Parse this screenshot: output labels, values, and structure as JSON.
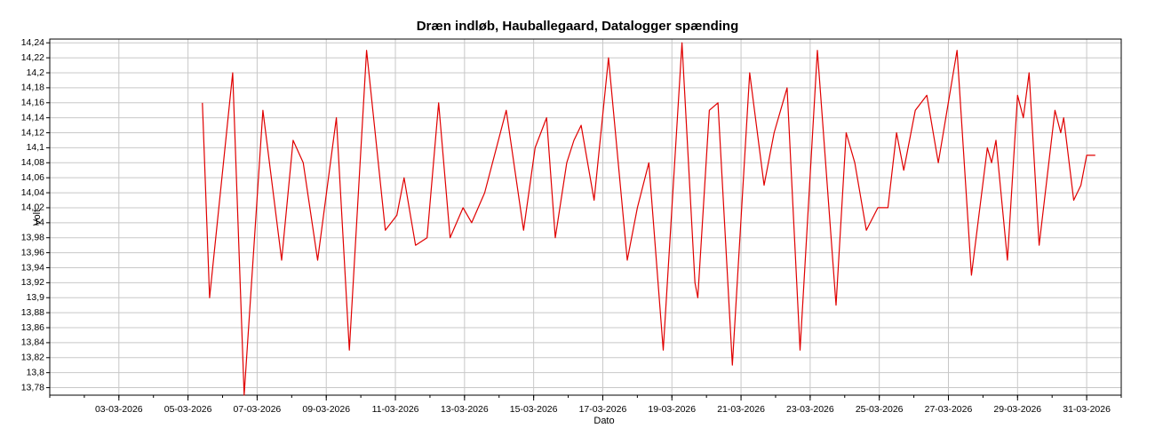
{
  "chart_data": {
    "type": "line",
    "title": "Dræn indløb, Hauballegaard, Datalogger spænding",
    "x_label": "Dato",
    "y_label": "Volt",
    "color": "#e00000",
    "grid": true,
    "xlim": [
      "2026-03-01T00:00",
      "2026-04-01T00:00"
    ],
    "xticks": [
      {
        "value": "2026-03-03T00:00",
        "label": "03-03-2026"
      },
      {
        "value": "2026-03-05T00:00",
        "label": "05-03-2026"
      },
      {
        "value": "2026-03-07T00:00",
        "label": "07-03-2026"
      },
      {
        "value": "2026-03-09T00:00",
        "label": "09-03-2026"
      },
      {
        "value": "2026-03-11T00:00",
        "label": "11-03-2026"
      },
      {
        "value": "2026-03-13T00:00",
        "label": "13-03-2026"
      },
      {
        "value": "2026-03-15T00:00",
        "label": "15-03-2026"
      },
      {
        "value": "2026-03-17T00:00",
        "label": "17-03-2026"
      },
      {
        "value": "2026-03-19T00:00",
        "label": "19-03-2026"
      },
      {
        "value": "2026-03-21T00:00",
        "label": "21-03-2026"
      },
      {
        "value": "2026-03-23T00:00",
        "label": "23-03-2026"
      },
      {
        "value": "2026-03-25T00:00",
        "label": "25-03-2026"
      },
      {
        "value": "2026-03-27T00:00",
        "label": "27-03-2026"
      },
      {
        "value": "2026-03-29T00:00",
        "label": "29-03-2026"
      },
      {
        "value": "2026-03-31T00:00",
        "label": "31-03-2026"
      }
    ],
    "ylim": [
      13.77,
      14.245
    ],
    "yticks": [
      {
        "value": 13.78,
        "label": "13,78"
      },
      {
        "value": 13.8,
        "label": "13,8"
      },
      {
        "value": 13.82,
        "label": "13,82"
      },
      {
        "value": 13.84,
        "label": "13,84"
      },
      {
        "value": 13.86,
        "label": "13,86"
      },
      {
        "value": 13.88,
        "label": "13,88"
      },
      {
        "value": 13.9,
        "label": "13,9"
      },
      {
        "value": 13.92,
        "label": "13,92"
      },
      {
        "value": 13.94,
        "label": "13,94"
      },
      {
        "value": 13.96,
        "label": "13,96"
      },
      {
        "value": 13.98,
        "label": "13,98"
      },
      14,
      {
        "value": 14.02,
        "label": "14,02"
      },
      {
        "value": 14.04,
        "label": "14,04"
      },
      {
        "value": 14.06,
        "label": "14,06"
      },
      {
        "value": 14.08,
        "label": "14,08"
      },
      {
        "value": 14.1,
        "label": "14,1"
      },
      {
        "value": 14.12,
        "label": "14,12"
      },
      {
        "value": 14.14,
        "label": "14,14"
      },
      {
        "value": 14.16,
        "label": "14,16"
      },
      {
        "value": 14.18,
        "label": "14,18"
      },
      {
        "value": 14.2,
        "label": "14,2"
      },
      {
        "value": 14.22,
        "label": "14,22"
      },
      {
        "value": 14.24,
        "label": "14,24"
      }
    ],
    "x": [
      "2026-03-05T10:00",
      "2026-03-05T15:00",
      "2026-03-06T07:00",
      "2026-03-06T15:00",
      "2026-03-07T04:00",
      "2026-03-07T17:00",
      "2026-03-08T01:00",
      "2026-03-08T08:00",
      "2026-03-08T18:00",
      "2026-03-09T07:00",
      "2026-03-09T16:00",
      "2026-03-10T04:00",
      "2026-03-10T17:00",
      "2026-03-11T01:00",
      "2026-03-11T06:00",
      "2026-03-11T14:00",
      "2026-03-11T22:00",
      "2026-03-12T06:00",
      "2026-03-12T14:00",
      "2026-03-12T23:00",
      "2026-03-13T05:00",
      "2026-03-13T14:00",
      "2026-03-14T05:00",
      "2026-03-14T17:00",
      "2026-03-15T01:00",
      "2026-03-15T09:00",
      "2026-03-15T15:00",
      "2026-03-15T23:00",
      "2026-03-16T04:00",
      "2026-03-16T09:00",
      "2026-03-16T18:00",
      "2026-03-17T04:00",
      "2026-03-17T17:00",
      "2026-03-18T00:00",
      "2026-03-18T08:00",
      "2026-03-18T18:00",
      "2026-03-19T07:00",
      "2026-03-19T16:00",
      "2026-03-19T18:00",
      "2026-03-20T02:00",
      "2026-03-20T08:00",
      "2026-03-20T18:00",
      "2026-03-21T06:00",
      "2026-03-21T16:00",
      "2026-03-21T23:00",
      "2026-03-22T08:00",
      "2026-03-22T17:00",
      "2026-03-23T05:00",
      "2026-03-23T18:00",
      "2026-03-24T01:00",
      "2026-03-24T07:00",
      "2026-03-24T15:00",
      "2026-03-24T23:00",
      "2026-03-25T06:00",
      "2026-03-25T12:00",
      "2026-03-25T17:00",
      "2026-03-26T01:00",
      "2026-03-26T09:00",
      "2026-03-26T17:00",
      "2026-03-27T06:00",
      "2026-03-27T16:00",
      "2026-03-28T03:00",
      "2026-03-28T06:00",
      "2026-03-28T09:00",
      "2026-03-28T17:00",
      "2026-03-29T00:00",
      "2026-03-29T04:00",
      "2026-03-29T08:00",
      "2026-03-29T15:00",
      "2026-03-30T02:00",
      "2026-03-30T06:00",
      "2026-03-30T08:00",
      "2026-03-30T15:00",
      "2026-03-30T20:00",
      "2026-03-31T00:00",
      "2026-03-31T06:00"
    ],
    "values": [
      14.16,
      13.9,
      14.2,
      13.77,
      14.15,
      13.95,
      14.11,
      14.08,
      13.95,
      14.14,
      13.83,
      14.23,
      13.99,
      14.01,
      14.06,
      13.97,
      13.98,
      14.16,
      13.98,
      14.02,
      14.0,
      14.04,
      14.15,
      13.99,
      14.1,
      14.14,
      13.98,
      14.08,
      14.11,
      14.13,
      14.03,
      14.22,
      13.95,
      14.02,
      14.08,
      13.83,
      14.24,
      13.92,
      13.9,
      14.15,
      14.16,
      13.81,
      14.2,
      14.05,
      14.12,
      14.18,
      13.83,
      14.23,
      13.89,
      14.12,
      14.08,
      13.99,
      14.02,
      14.02,
      14.12,
      14.07,
      14.15,
      14.17,
      14.08,
      14.23,
      13.93,
      14.1,
      14.08,
      14.11,
      13.95,
      14.17,
      14.14,
      14.2,
      13.97,
      14.15,
      14.12,
      14.14,
      14.03,
      14.05,
      14.09,
      14.09
    ]
  }
}
